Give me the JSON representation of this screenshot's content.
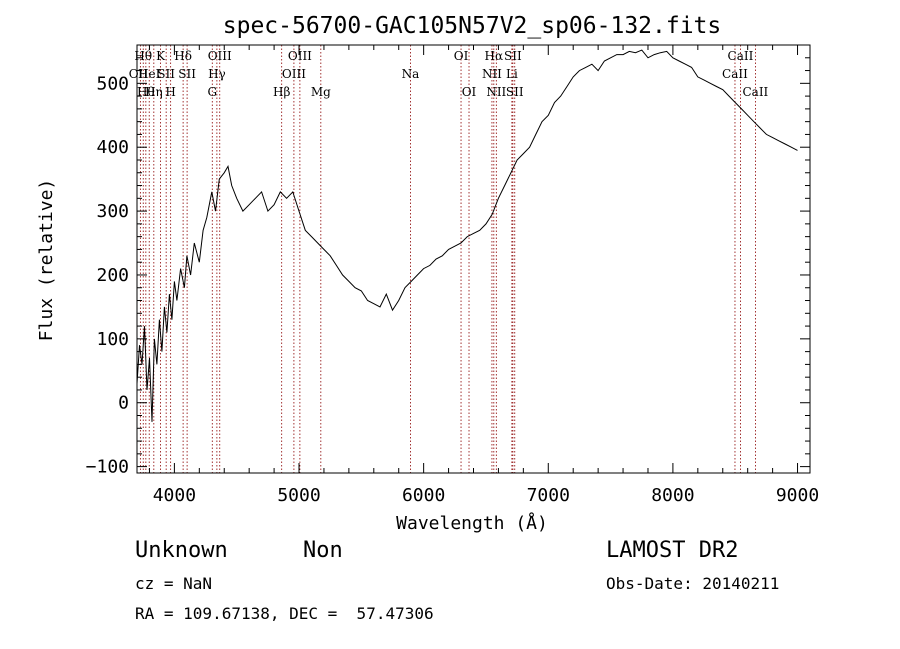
{
  "chart_data": {
    "type": "line",
    "title": "spec-56700-GAC105N57V2_sp06-132.fits",
    "xlabel": "Wavelength (Å)",
    "ylabel": "Flux (relative)",
    "xlim": [
      3700,
      9100
    ],
    "ylim": [
      -110,
      560
    ],
    "x_ticks": [
      4000,
      5000,
      6000,
      7000,
      8000,
      9000
    ],
    "y_ticks": [
      -100,
      0,
      100,
      200,
      300,
      400,
      500
    ],
    "grid": false,
    "series": [
      {
        "x": [
          3700,
          3720,
          3740,
          3760,
          3780,
          3800,
          3820,
          3840,
          3860,
          3880,
          3900,
          3920,
          3940,
          3960,
          3980,
          4000,
          4020,
          4050,
          4080,
          4100,
          4130,
          4160,
          4200,
          4230,
          4260,
          4300,
          4330,
          4360,
          4400,
          4430,
          4460,
          4500,
          4550,
          4600,
          4650,
          4700,
          4750,
          4800,
          4850,
          4900,
          4950,
          5000,
          5050,
          5100,
          5150,
          5200,
          5250,
          5300,
          5350,
          5400,
          5450,
          5500,
          5550,
          5600,
          5650,
          5700,
          5750,
          5800,
          5850,
          5900,
          5950,
          6000,
          6050,
          6100,
          6150,
          6200,
          6250,
          6300,
          6350,
          6400,
          6450,
          6500,
          6550,
          6600,
          6650,
          6700,
          6750,
          6800,
          6850,
          6900,
          6950,
          7000,
          7050,
          7100,
          7150,
          7200,
          7250,
          7300,
          7350,
          7400,
          7450,
          7500,
          7550,
          7600,
          7650,
          7700,
          7750,
          7800,
          7850,
          7900,
          7950,
          8000,
          8050,
          8100,
          8150,
          8200,
          8250,
          8300,
          8350,
          8400,
          8450,
          8500,
          8550,
          8600,
          8650,
          8700,
          8750,
          8800,
          8850,
          8900,
          8950,
          9000
        ],
        "y": [
          30,
          90,
          60,
          120,
          20,
          70,
          -30,
          100,
          60,
          130,
          80,
          150,
          110,
          170,
          130,
          190,
          160,
          210,
          180,
          230,
          200,
          250,
          220,
          270,
          290,
          330,
          300,
          350,
          360,
          370,
          340,
          320,
          300,
          310,
          320,
          330,
          300,
          310,
          330,
          320,
          330,
          300,
          270,
          260,
          250,
          240,
          230,
          215,
          200,
          190,
          180,
          175,
          160,
          155,
          150,
          170,
          145,
          160,
          180,
          190,
          200,
          210,
          215,
          225,
          230,
          240,
          245,
          250,
          260,
          265,
          270,
          280,
          295,
          320,
          340,
          360,
          380,
          390,
          400,
          420,
          440,
          450,
          470,
          480,
          495,
          510,
          520,
          525,
          530,
          520,
          535,
          540,
          545,
          545,
          550,
          548,
          552,
          540,
          545,
          548,
          550,
          540,
          535,
          530,
          525,
          510,
          505,
          500,
          495,
          490,
          480,
          470,
          460,
          450,
          440,
          430,
          420,
          415,
          410,
          405,
          400,
          395
        ],
        "color": "#000000"
      }
    ],
    "lines": [
      {
        "x": 3727,
        "name": "OII",
        "row": 1,
        "dx": -2
      },
      {
        "x": 3750,
        "name": "Hθ",
        "row": 0,
        "dx": 0
      },
      {
        "x": 3771,
        "name": "Hθ",
        "row": 2,
        "dx": 0
      },
      {
        "x": 3798,
        "name": "HeI",
        "row": 1,
        "dx": 0
      },
      {
        "x": 3835,
        "name": "Hη",
        "row": 2,
        "dx": 0
      },
      {
        "x": 3889,
        "name": "K",
        "row": 0,
        "dx": 0
      },
      {
        "x": 3934,
        "name": "SII",
        "row": 1,
        "dx": 0
      },
      {
        "x": 3970,
        "name": "H",
        "row": 2,
        "dx": 0
      },
      {
        "x": 4070,
        "name": "Hδ",
        "row": 0,
        "dx": 0
      },
      {
        "x": 4102,
        "name": "SII",
        "row": 1,
        "dx": 0
      },
      {
        "x": 4304,
        "name": "G",
        "row": 2,
        "dx": 0
      },
      {
        "x": 4341,
        "name": "Hγ",
        "row": 1,
        "dx": 0
      },
      {
        "x": 4364,
        "name": "OIII",
        "row": 0,
        "dx": 0
      },
      {
        "x": 4861,
        "name": "Hβ",
        "row": 2,
        "dx": 0
      },
      {
        "x": 4959,
        "name": "OIII",
        "row": 1,
        "dx": 0
      },
      {
        "x": 5007,
        "name": "OIII",
        "row": 0,
        "dx": 0
      },
      {
        "x": 5175,
        "name": "Mg",
        "row": 2,
        "dx": 0
      },
      {
        "x": 5894,
        "name": "Na",
        "row": 1,
        "dx": 0
      },
      {
        "x": 6300,
        "name": "OI",
        "row": 0,
        "dx": 0
      },
      {
        "x": 6364,
        "name": "OI",
        "row": 2,
        "dx": 0
      },
      {
        "x": 6548,
        "name": "NII",
        "row": 1,
        "dx": 0
      },
      {
        "x": 6563,
        "name": "Hα",
        "row": 0,
        "dx": 0
      },
      {
        "x": 6583,
        "name": "NII",
        "row": 2,
        "dx": 0
      },
      {
        "x": 6708,
        "name": "Li",
        "row": 1,
        "dx": 0
      },
      {
        "x": 6716,
        "name": "SII",
        "row": 0,
        "dx": 0
      },
      {
        "x": 6731,
        "name": "SII",
        "row": 2,
        "dx": 0
      },
      {
        "x": 8498,
        "name": "CaII",
        "row": 1,
        "dx": 0
      },
      {
        "x": 8542,
        "name": "CaII",
        "row": 0,
        "dx": 0
      },
      {
        "x": 8662,
        "name": "CaII",
        "row": 2,
        "dx": 0
      }
    ]
  },
  "info": {
    "object_type": "Unknown",
    "subclass": "Non",
    "survey": "LAMOST DR2",
    "cz": "cz = NaN",
    "obs_date": "Obs-Date: 20140211",
    "coords": "RA = 109.67138, DEC =  57.47306"
  }
}
